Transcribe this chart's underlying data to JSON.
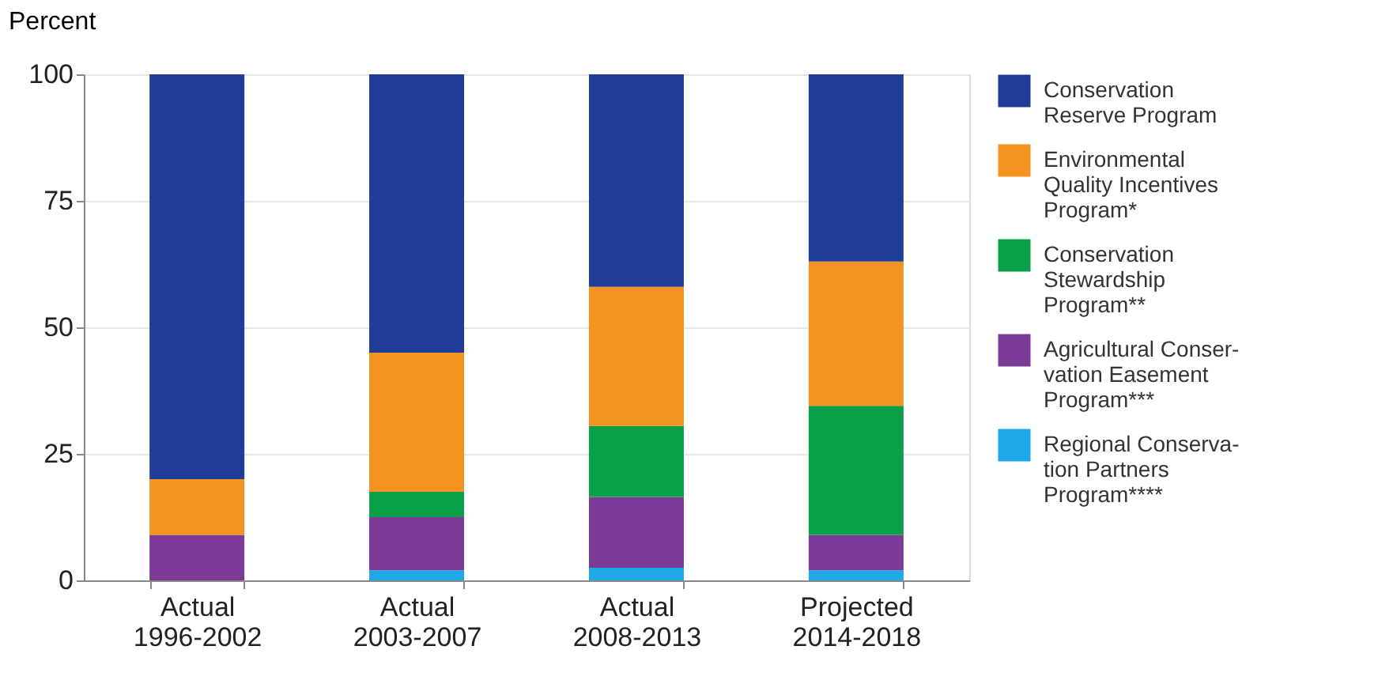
{
  "chart_data": {
    "type": "bar",
    "stacked": true,
    "ylabel": "Percent",
    "categories": [
      "Actual\n1996-2002",
      "Actual\n2003-2007",
      "Actual\n2008-2013",
      "Projected\n2014-2018"
    ],
    "series": [
      {
        "name": "Regional Conserva-\ntion Partners\nProgram****",
        "color": "#1ea8e8",
        "values": [
          0,
          2,
          2.5,
          2
        ]
      },
      {
        "name": "Agricultural Conser-\nvation Easement\nProgram***",
        "color": "#7b3a96",
        "values": [
          9,
          10.5,
          14,
          7
        ]
      },
      {
        "name": "Conservation\nStewardship\nProgram**",
        "color": "#0aa04a",
        "values": [
          0,
          5,
          14,
          25.5
        ]
      },
      {
        "name": "Environmental\nQuality Incentives\nProgram*",
        "color": "#f39320",
        "values": [
          11,
          27.5,
          27.5,
          28.5
        ]
      },
      {
        "name": "Conservation\nReserve Program",
        "color": "#213c96",
        "values": [
          80,
          55,
          42,
          37
        ]
      }
    ],
    "ylim": [
      0,
      100
    ],
    "yticks": [
      0,
      25,
      50,
      75,
      100
    ],
    "grid": "y",
    "legend": "right"
  }
}
